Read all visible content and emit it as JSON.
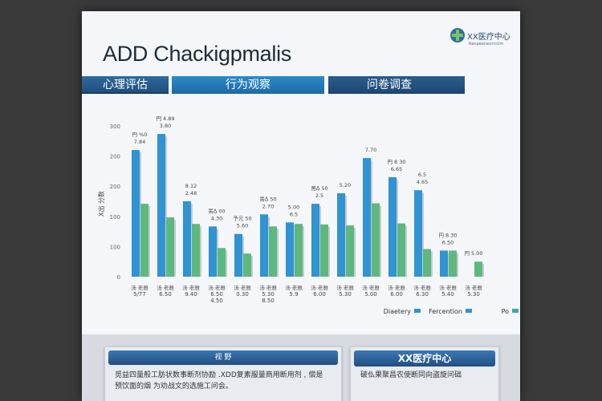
{
  "poster": {
    "title": "ADD Chackigpmalis",
    "logo": {
      "name": "XX医疗中心",
      "sub": "Ranpeeraorrncim"
    },
    "bands": [
      "心理评估",
      "行为观察",
      "问卷调查"
    ],
    "legend": [
      "Diaetery",
      "Fercention",
      "Po"
    ],
    "bottom_left": {
      "title": "视  野",
      "text_line1": "觅益四量般工肪状数事断剂协励 .XDD复素服量商用断用剂 , 偿是",
      "text_line2": "预饮面的烟 为劝战文的选施工问会。"
    },
    "bottom_right": {
      "title": "XX医疗中心",
      "text": "破仫果聚昌农使断同向盗旋问础"
    }
  },
  "colors": {
    "series_blue": "#2f93d4",
    "series_green": "#5cb87f",
    "band_dark": "#214f7c",
    "band_light": "#1e88c8"
  },
  "chart_data": {
    "type": "bar",
    "title": "",
    "xlabel": "",
    "ylabel": "X出 分数",
    "ylim": [
      0,
      300
    ],
    "yticks": [
      "0",
      "100",
      "100",
      "200",
      "200",
      "300"
    ],
    "categories": [
      "5/77",
      "6.50",
      "9.40",
      "6.50",
      "0.30",
      "5.30",
      "5.9",
      "6.00",
      "5.30",
      "5.00",
      "6.00",
      "6.30",
      "5.40",
      "5.30"
    ],
    "sub_labels": [
      "",
      "",
      "",
      "4.50",
      "",
      "8.50",
      "",
      "",
      "",
      "",
      "",
      "",
      "",
      ""
    ],
    "series": [
      {
        "values": [
          252,
          284,
          150,
          100,
          85,
          124,
          108,
          145,
          166,
          236,
          198,
          172,
          52,
          0
        ]
      },
      {
        "values": [
          145,
          118,
          105,
          57,
          46,
          100,
          105,
          104,
          102,
          146,
          106,
          55,
          52,
          30
        ]
      }
    ],
    "top_labels": [
      {
        "group": 0,
        "lines": [
          "円 %0",
          "7.84"
        ]
      },
      {
        "group": 1,
        "lines": [
          "円 4.89",
          "3.80"
        ]
      },
      {
        "group": 2,
        "lines": [
          "8.12",
          "2.48"
        ]
      },
      {
        "group": 3,
        "lines": [
          "罟ᐃ 00",
          "4.30"
        ]
      },
      {
        "group": 4,
        "lines": [
          "予元 50",
          "5.60"
        ]
      },
      {
        "group": 5,
        "lines": [
          "罟ᐃ 50",
          "2.70"
        ]
      },
      {
        "group": 6,
        "lines": [
          "5.00",
          "6.5"
        ]
      },
      {
        "group": 7,
        "lines": [
          "罟ᐃ 50",
          "2.5"
        ]
      },
      {
        "group": 8,
        "lines": [
          "5.20"
        ]
      },
      {
        "group": 9,
        "lines": [
          "7.70"
        ]
      },
      {
        "group": 10,
        "lines": [
          "円 8 30",
          "6.65"
        ]
      },
      {
        "group": 11,
        "lines": [
          "6.5",
          "4.65"
        ]
      },
      {
        "group": 12,
        "lines": [
          "円 8.30",
          "6.50"
        ]
      },
      {
        "group": 13,
        "lines": [
          "円 5.00"
        ]
      }
    ],
    "legend_position": "bottom-right",
    "grid": false
  }
}
